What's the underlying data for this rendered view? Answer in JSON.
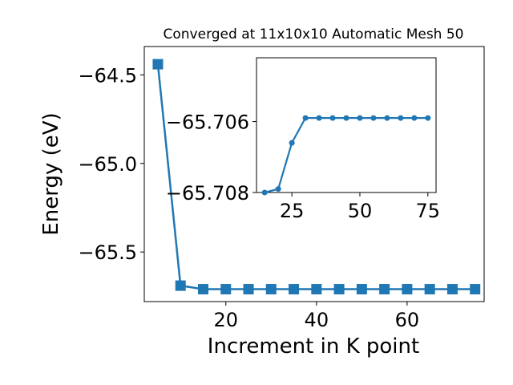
{
  "chart_data": [
    {
      "type": "line",
      "title": "Converged at 11x10x10 Automatic Mesh 50",
      "xlabel": "Increment in K point",
      "ylabel": "Energy (eV)",
      "xlim": [
        2,
        77
      ],
      "ylim": [
        -65.78,
        -64.34
      ],
      "xticks": [
        20,
        40,
        60
      ],
      "yticks": [
        -64.5,
        -65.0,
        -65.5
      ],
      "ytick_labels": [
        "−64.5",
        "−65.0",
        "−65.5"
      ],
      "grid": false,
      "marker": "square",
      "color": "#1f77b4",
      "series": [
        {
          "x": [
            5,
            10,
            15,
            20,
            25,
            30,
            35,
            40,
            45,
            50,
            55,
            60,
            65,
            70,
            75
          ],
          "values": [
            -64.44,
            -65.69,
            -65.71,
            -65.71,
            -65.71,
            -65.71,
            -65.71,
            -65.71,
            -65.71,
            -65.71,
            -65.71,
            -65.71,
            -65.71,
            -65.71,
            -65.71
          ]
        }
      ]
    },
    {
      "type": "line",
      "role": "inset",
      "xlim": [
        12,
        78
      ],
      "ylim": [
        -65.708,
        -65.7042
      ],
      "xticks": [
        25,
        50,
        75
      ],
      "yticks": [
        -65.708,
        -65.706
      ],
      "ytick_labels": [
        "−65.708",
        "−65.706"
      ],
      "grid": false,
      "marker": "circle",
      "color": "#1f77b4",
      "series": [
        {
          "x": [
            15,
            20,
            25,
            30,
            35,
            40,
            45,
            50,
            55,
            60,
            65,
            70,
            75
          ],
          "values": [
            -65.708,
            -65.7079,
            -65.7066,
            -65.7059,
            -65.7059,
            -65.7059,
            -65.7059,
            -65.7059,
            -65.7059,
            -65.7059,
            -65.7059,
            -65.7059,
            -65.7059
          ]
        }
      ]
    }
  ]
}
